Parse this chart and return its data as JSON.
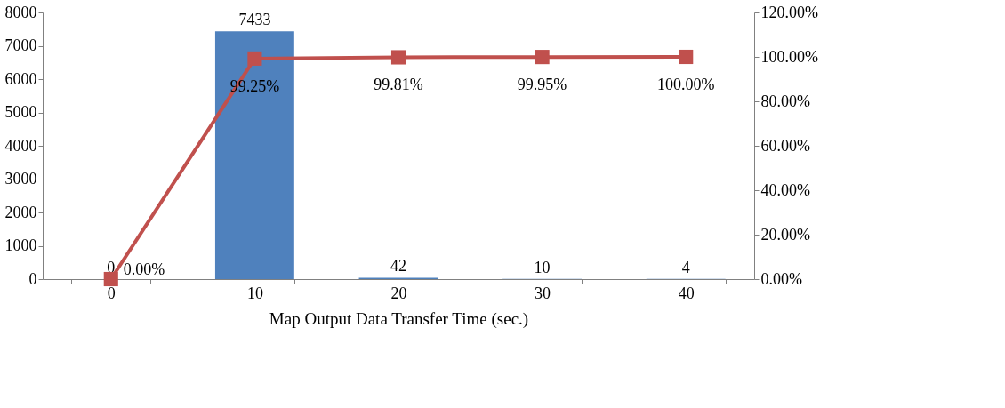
{
  "chart_data": {
    "type": "bar",
    "xlabel": "Map Output Data Transfer Time (sec.)",
    "categories": [
      "0",
      "10",
      "20",
      "30",
      "40"
    ],
    "series": [
      {
        "color": "#4f81bd",
        "values": [
          0,
          7433,
          42,
          10,
          4
        ],
        "data_labels": true
      },
      {
        "type": "line",
        "axis": "y2",
        "color": "#c0504d",
        "values": [
          0,
          99.25,
          99.81,
          99.95,
          100
        ],
        "value_labels": [
          "0.00%",
          "99.25%",
          "99.81%",
          "99.95%",
          "100.00%"
        ]
      }
    ],
    "ylim": [
      0,
      8000
    ],
    "yticks": [
      0,
      1000,
      2000,
      3000,
      4000,
      5000,
      6000,
      7000,
      8000
    ],
    "y2lim": [
      0,
      120
    ],
    "y2ticks": [
      {
        "value": 0,
        "label": "0.00%"
      },
      {
        "value": 20,
        "label": "20.00%"
      },
      {
        "value": 40,
        "label": "40.00%"
      },
      {
        "value": 60,
        "label": "60.00%"
      },
      {
        "value": 80,
        "label": "80.00%"
      },
      {
        "value": 100,
        "label": "100.00%"
      },
      {
        "value": 120,
        "label": "120.00%"
      }
    ],
    "grid": false,
    "marker": "square",
    "line_style": "solid"
  }
}
